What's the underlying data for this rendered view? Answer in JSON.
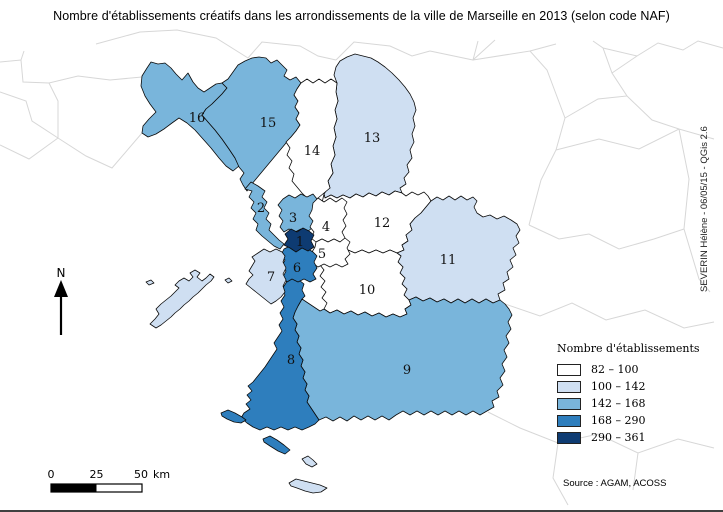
{
  "title": "Nombre d'établissements créatifs dans les arrondissements de la ville de Marseille en 2013 (selon code NAF)",
  "credit_vertical": "SEVERIN Hélène - 06/05/15 - QGis 2.6",
  "source": "Source : AGAM, ACOSS",
  "north_label": "N",
  "scalebar": {
    "ticks": [
      "0",
      "25",
      "50"
    ],
    "unit": "km"
  },
  "legend": {
    "title": "Nombre d'établissements",
    "classes": [
      {
        "label": "82 – 100",
        "color": "#ffffff"
      },
      {
        "label": "100 – 142",
        "color": "#cfdff2"
      },
      {
        "label": "142 – 168",
        "color": "#79b5db"
      },
      {
        "label": "168 – 290",
        "color": "#2e7ebd"
      },
      {
        "label": "290 – 361",
        "color": "#0e3b72"
      }
    ]
  },
  "map": {
    "districts": [
      {
        "number": "1",
        "class_index": 4
      },
      {
        "number": "2",
        "class_index": 2
      },
      {
        "number": "3",
        "class_index": 2
      },
      {
        "number": "4",
        "class_index": 0
      },
      {
        "number": "5",
        "class_index": 0
      },
      {
        "number": "6",
        "class_index": 3
      },
      {
        "number": "7",
        "class_index": 1
      },
      {
        "number": "8",
        "class_index": 3
      },
      {
        "number": "9",
        "class_index": 2
      },
      {
        "number": "10",
        "class_index": 0
      },
      {
        "number": "11",
        "class_index": 1
      },
      {
        "number": "12",
        "class_index": 0
      },
      {
        "number": "13",
        "class_index": 1
      },
      {
        "number": "14",
        "class_index": 0
      },
      {
        "number": "15",
        "class_index": 2
      },
      {
        "number": "16",
        "class_index": 2
      }
    ],
    "islands": [
      {
        "name": "island-1",
        "class_index": 1
      },
      {
        "name": "island-2",
        "class_index": 3
      },
      {
        "name": "island-3",
        "class_index": 3
      },
      {
        "name": "island-4",
        "class_index": 1
      },
      {
        "name": "island-5",
        "class_index": 1
      }
    ]
  }
}
